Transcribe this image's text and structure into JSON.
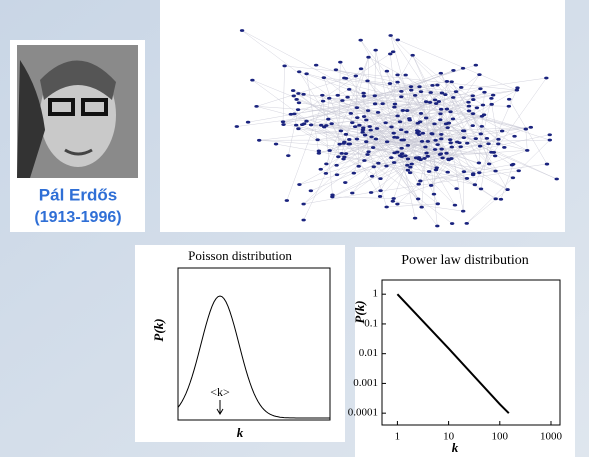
{
  "portrait": {
    "name": "Pál Erdős",
    "years": "(1913-1996)"
  },
  "poisson": {
    "title": "Poisson distribution",
    "ylabel": "P(k)",
    "xlabel": "k",
    "mean_label": "<k>"
  },
  "chart_data": {
    "type": "line",
    "title": "Power law distribution",
    "xlabel": "k",
    "ylabel": "P(k)",
    "log_x": true,
    "log_y": true,
    "x": [
      1,
      10,
      100,
      150
    ],
    "series": [
      {
        "color": "#000000",
        "values": [
          1,
          0.015,
          0.0002,
          0.0001
        ]
      }
    ],
    "xlim": [
      0.5,
      1500
    ],
    "xticks": [
      1,
      10,
      100,
      1000
    ],
    "ylim": [
      4e-05,
      3
    ],
    "yticks": [
      1,
      0.1,
      0.01,
      0.001,
      0.0001
    ]
  }
}
